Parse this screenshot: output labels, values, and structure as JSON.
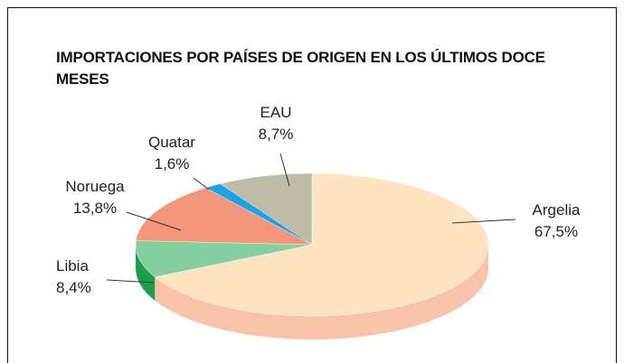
{
  "chart_data": {
    "type": "pie",
    "title": "IMPORTACIONES POR PAÍSES DE ORIGEN EN LOS ÚLTIMOS DOCE MESES",
    "categories": [
      "Argelia",
      "Libia",
      "Noruega",
      "Quatar",
      "EAU"
    ],
    "values": [
      67.5,
      8.4,
      13.8,
      1.6,
      8.7
    ],
    "value_labels": [
      "67,5%",
      "8,4%",
      "13,8%",
      "1,6%",
      "8,7%"
    ],
    "colors": [
      "#fde3bf",
      "#85cf9f",
      "#f4967a",
      "#1aa3e8",
      "#bdbba6"
    ],
    "side_colors": [
      "#f9c3aa",
      "#1aa04a",
      "#e07a60",
      "#0f86c4",
      "#9d9b86"
    ]
  }
}
